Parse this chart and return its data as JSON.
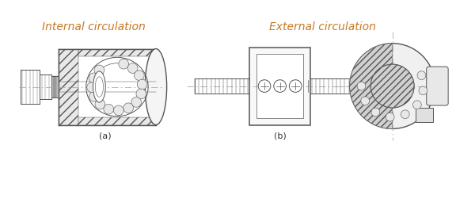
{
  "fig_width": 5.76,
  "fig_height": 2.7,
  "dpi": 100,
  "bg_color": "#ffffff",
  "label_a": "(a)",
  "label_b": "(b)",
  "text_internal": "Internal circulation",
  "text_external": "External circulation",
  "text_color": "#c87820",
  "label_color": "#333333",
  "label_fontsize": 8,
  "caption_fontsize": 10,
  "lc": "#555555",
  "lw": 0.7
}
